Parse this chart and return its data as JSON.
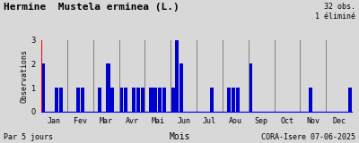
{
  "title": "Hermine  Mustela erminea (L.)",
  "xlabel": "Mois",
  "ylabel": "Observations",
  "footer_left": "Par 5 jours",
  "footer_right": "CORA-Isere 07-06-2025",
  "info_text": "32 obs.\n1 éliminé",
  "ylim": [
    0,
    3
  ],
  "yticks": [
    0,
    1,
    2,
    3
  ],
  "months": [
    "Jan",
    "Fev",
    "Mar",
    "Avr",
    "Mai",
    "Jun",
    "Jul",
    "Aou",
    "Sep",
    "Oct",
    "Nov",
    "Dec"
  ],
  "bar_color": "#0000cc",
  "background_color": "#d8d8d8",
  "values": [
    2,
    0,
    0,
    1,
    1,
    0,
    0,
    0,
    1,
    1,
    0,
    0,
    0,
    1,
    0,
    2,
    1,
    0,
    1,
    1,
    0,
    1,
    1,
    1,
    0,
    1,
    1,
    1,
    1,
    0,
    1,
    3,
    2,
    0,
    0,
    0,
    0,
    0,
    0,
    1,
    0,
    0,
    0,
    1,
    1,
    1,
    0,
    0,
    2,
    0,
    0,
    0,
    0,
    0,
    0,
    0,
    0,
    0,
    0,
    0,
    0,
    0,
    1,
    0,
    0,
    0,
    0,
    0,
    0,
    0,
    0,
    1
  ],
  "n_per_month": 6,
  "n_months": 12
}
